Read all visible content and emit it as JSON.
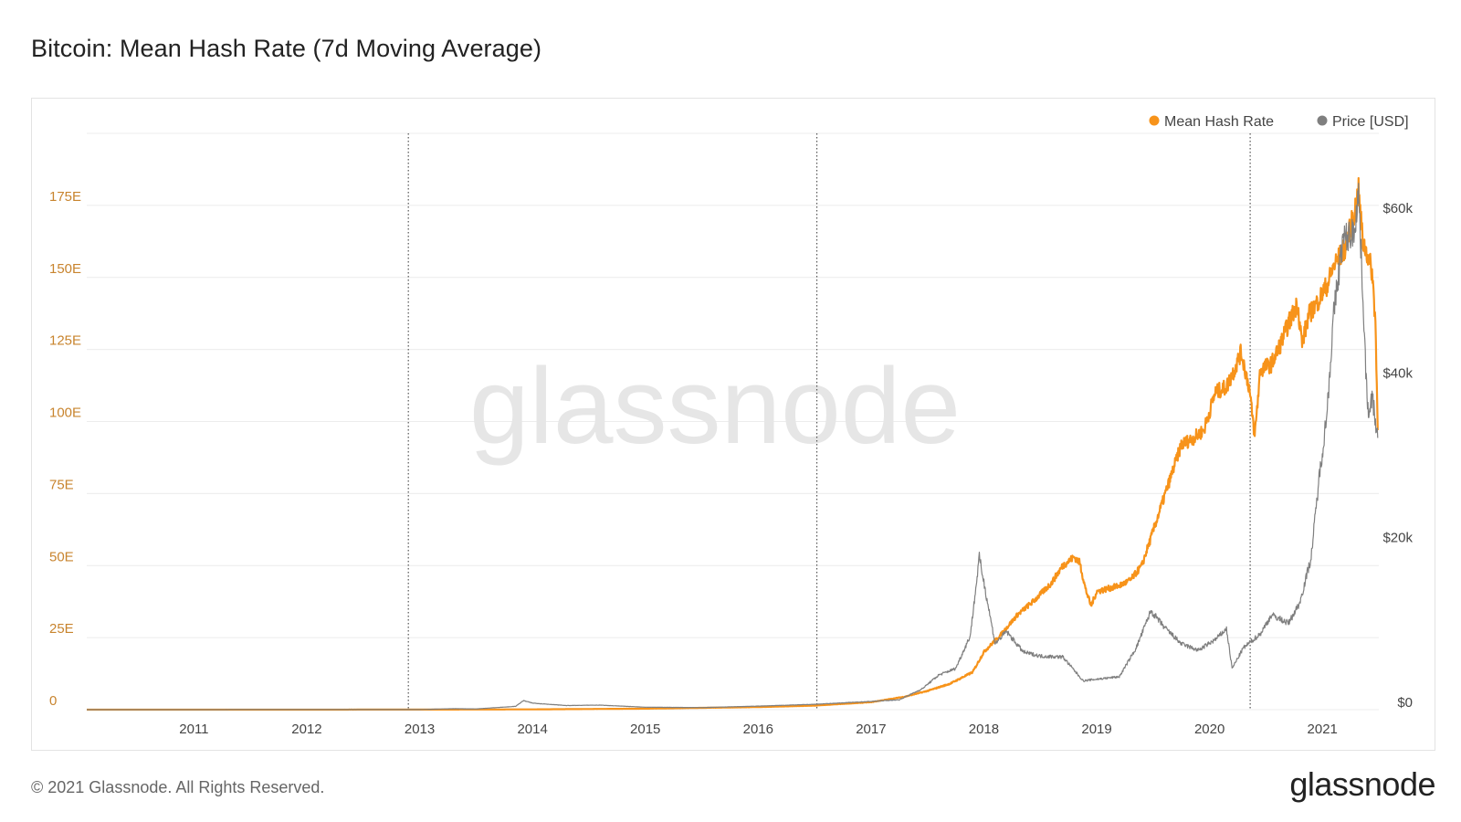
{
  "title": "Bitcoin: Mean Hash Rate (7d Moving Average)",
  "footer": {
    "copyright": "© 2021 Glassnode. All Rights Reserved.",
    "logo": "glassnode"
  },
  "watermark": "glassnode",
  "colors": {
    "hash_rate": "#f7931a",
    "price": "#7f7f7f",
    "grid": "#ececec",
    "halving": "#555555"
  },
  "chart_data": {
    "type": "line",
    "title": "Bitcoin: Mean Hash Rate (7d Moving Average)",
    "x_range": [
      2010.05,
      2021.5
    ],
    "x_ticks": [
      "2011",
      "2012",
      "2013",
      "2014",
      "2015",
      "2016",
      "2017",
      "2018",
      "2019",
      "2020",
      "2021"
    ],
    "halvings": [
      2012.9,
      2016.52,
      2020.36
    ],
    "y_left": {
      "label": "Mean Hash Rate",
      "range": [
        0,
        200
      ],
      "ticks": [
        0,
        25,
        50,
        75,
        100,
        125,
        150,
        175
      ],
      "tick_labels": [
        "0",
        "25E",
        "50E",
        "75E",
        "100E",
        "125E",
        "150E",
        "175E"
      ]
    },
    "y_right": {
      "label": "Price [USD]",
      "range": [
        0,
        70000
      ],
      "ticks": [
        0,
        20000,
        40000,
        60000
      ],
      "tick_labels": [
        "$0",
        "$20k",
        "$40k",
        "$60k"
      ]
    },
    "legend": [
      {
        "name": "Mean Hash Rate",
        "color": "#f7931a"
      },
      {
        "name": "Price [USD]",
        "color": "#7f7f7f"
      }
    ],
    "series": [
      {
        "name": "Mean Hash Rate",
        "axis": "left",
        "points": [
          [
            2010.05,
            0
          ],
          [
            2013.0,
            0.02
          ],
          [
            2014.0,
            0.1
          ],
          [
            2015.0,
            0.35
          ],
          [
            2016.0,
            0.9
          ],
          [
            2016.5,
            1.4
          ],
          [
            2017.0,
            2.6
          ],
          [
            2017.3,
            4.5
          ],
          [
            2017.5,
            6.5
          ],
          [
            2017.7,
            9
          ],
          [
            2017.9,
            13
          ],
          [
            2018.0,
            20
          ],
          [
            2018.15,
            26
          ],
          [
            2018.3,
            33
          ],
          [
            2018.45,
            38
          ],
          [
            2018.6,
            44
          ],
          [
            2018.7,
            50
          ],
          [
            2018.8,
            53
          ],
          [
            2018.85,
            51
          ],
          [
            2018.9,
            42
          ],
          [
            2018.95,
            36
          ],
          [
            2019.0,
            41
          ],
          [
            2019.1,
            42
          ],
          [
            2019.2,
            43
          ],
          [
            2019.3,
            45
          ],
          [
            2019.4,
            50
          ],
          [
            2019.5,
            62
          ],
          [
            2019.55,
            68
          ],
          [
            2019.65,
            80
          ],
          [
            2019.75,
            92
          ],
          [
            2019.85,
            94
          ],
          [
            2019.95,
            97
          ],
          [
            2020.05,
            110
          ],
          [
            2020.15,
            112
          ],
          [
            2020.22,
            118
          ],
          [
            2020.28,
            124
          ],
          [
            2020.35,
            112
          ],
          [
            2020.4,
            95
          ],
          [
            2020.45,
            118
          ],
          [
            2020.55,
            120
          ],
          [
            2020.62,
            126
          ],
          [
            2020.7,
            134
          ],
          [
            2020.78,
            141
          ],
          [
            2020.82,
            127
          ],
          [
            2020.88,
            137
          ],
          [
            2020.95,
            141
          ],
          [
            2021.05,
            148
          ],
          [
            2021.1,
            154
          ],
          [
            2021.2,
            160
          ],
          [
            2021.28,
            172
          ],
          [
            2021.32,
            180
          ],
          [
            2021.36,
            162
          ],
          [
            2021.4,
            158
          ],
          [
            2021.44,
            152
          ],
          [
            2021.47,
            135
          ],
          [
            2021.49,
            97
          ]
        ]
      },
      {
        "name": "Price [USD]",
        "axis": "right",
        "points": [
          [
            2010.05,
            0
          ],
          [
            2013.0,
            13
          ],
          [
            2013.3,
            120
          ],
          [
            2013.5,
            90
          ],
          [
            2013.85,
            400
          ],
          [
            2013.92,
            1100
          ],
          [
            2014.0,
            800
          ],
          [
            2014.3,
            500
          ],
          [
            2014.6,
            550
          ],
          [
            2015.0,
            300
          ],
          [
            2015.5,
            250
          ],
          [
            2016.0,
            430
          ],
          [
            2016.5,
            650
          ],
          [
            2017.0,
            1000
          ],
          [
            2017.25,
            1200
          ],
          [
            2017.45,
            2500
          ],
          [
            2017.6,
            4200
          ],
          [
            2017.75,
            5000
          ],
          [
            2017.88,
            9000
          ],
          [
            2017.96,
            18500
          ],
          [
            2018.02,
            14000
          ],
          [
            2018.1,
            8000
          ],
          [
            2018.2,
            9500
          ],
          [
            2018.35,
            7000
          ],
          [
            2018.5,
            6500
          ],
          [
            2018.7,
            6400
          ],
          [
            2018.88,
            3500
          ],
          [
            2019.0,
            3700
          ],
          [
            2019.2,
            4000
          ],
          [
            2019.35,
            7500
          ],
          [
            2019.48,
            12000
          ],
          [
            2019.6,
            10000
          ],
          [
            2019.75,
            8000
          ],
          [
            2019.9,
            7200
          ],
          [
            2020.05,
            8500
          ],
          [
            2020.15,
            9800
          ],
          [
            2020.2,
            5000
          ],
          [
            2020.3,
            7500
          ],
          [
            2020.45,
            9200
          ],
          [
            2020.55,
            11500
          ],
          [
            2020.7,
            10500
          ],
          [
            2020.8,
            13000
          ],
          [
            2020.9,
            18500
          ],
          [
            2020.97,
            28000
          ],
          [
            2021.04,
            36000
          ],
          [
            2021.1,
            48000
          ],
          [
            2021.18,
            57000
          ],
          [
            2021.28,
            58000
          ],
          [
            2021.32,
            63000
          ],
          [
            2021.36,
            50000
          ],
          [
            2021.4,
            36000
          ],
          [
            2021.44,
            38000
          ],
          [
            2021.47,
            35000
          ],
          [
            2021.49,
            33000
          ]
        ]
      }
    ]
  }
}
